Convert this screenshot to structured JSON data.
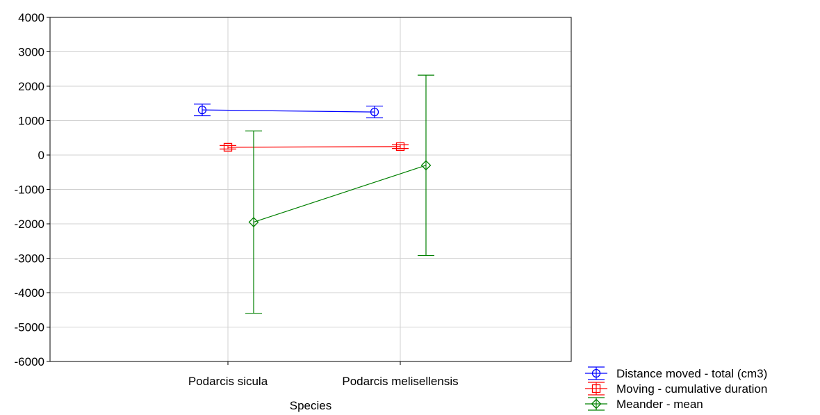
{
  "chart_data": {
    "type": "line",
    "title": "",
    "xlabel": "Species",
    "ylabel": "",
    "categories": [
      "Podarcis sicula",
      "Podarcis melisellensis"
    ],
    "ylim": [
      -6000,
      4000
    ],
    "yticks": [
      "4000",
      "3000",
      "2000",
      "1000",
      "0",
      "-1000",
      "-2000",
      "-3000",
      "-4000",
      "-5000",
      "-6000"
    ],
    "grid": true,
    "legend_position": "bottom-right",
    "series": [
      {
        "name": "Distance moved - total (cm3)",
        "color": "#0000ff",
        "marker": "circle",
        "x_offset": -0.4,
        "values": [
          1310,
          1250
        ],
        "error_low": [
          1140,
          1080
        ],
        "error_high": [
          1480,
          1420
        ]
      },
      {
        "name": "Moving - cumulative duration",
        "color": "#ff0000",
        "marker": "square",
        "x_offset": 0,
        "values": [
          225,
          245
        ],
        "error_low": [
          175,
          190
        ],
        "error_high": [
          275,
          300
        ]
      },
      {
        "name": "Meander - mean",
        "color": "#008000",
        "marker": "diamond",
        "x_offset": 0.4,
        "values": [
          -1950,
          -300
        ],
        "error_low": [
          -4600,
          -2920
        ],
        "error_high": [
          700,
          2320
        ]
      }
    ]
  }
}
